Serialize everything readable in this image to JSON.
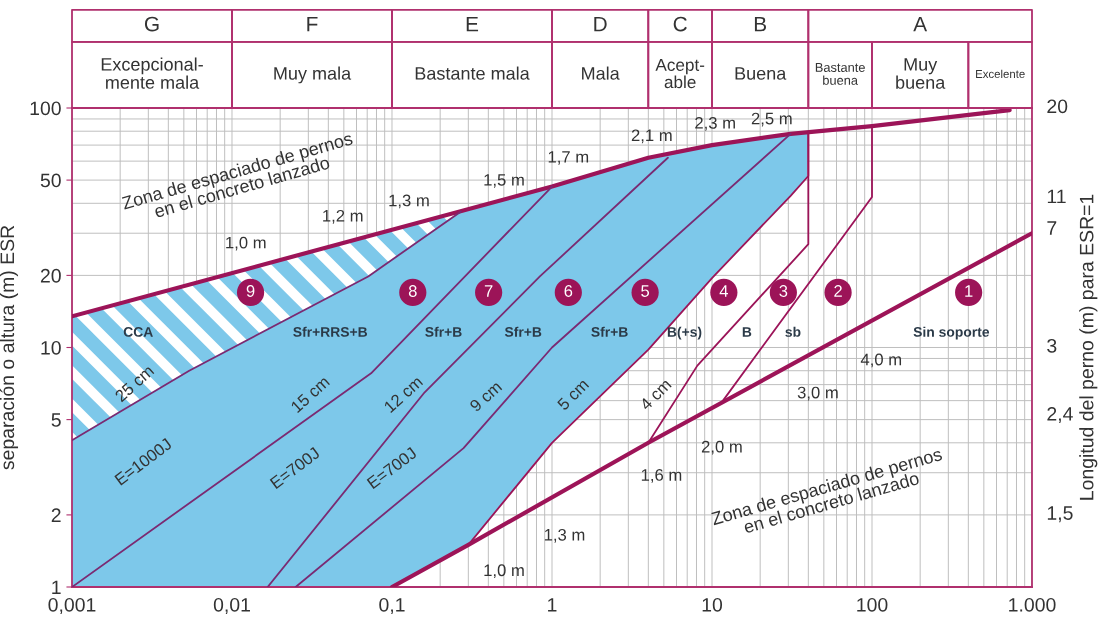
{
  "chart_data": {
    "type": "line",
    "ylabel": "separación o altura (m) ESR",
    "y2label": "Longitud del perno (m) para ESR=1",
    "log": "xy",
    "grid": true,
    "xlim": [
      0.001,
      1000
    ],
    "ylim": [
      1,
      100
    ],
    "xticks": [
      {
        "value": 0.001,
        "label": "0,001"
      },
      {
        "value": 0.01,
        "label": "0,01"
      },
      {
        "value": 0.1,
        "label": "0,1"
      },
      1,
      10,
      100,
      {
        "value": 1000,
        "label": "1.000"
      }
    ],
    "yticks": [
      1,
      2,
      5,
      10,
      20,
      50,
      100
    ],
    "series": [
      {
        "color": "#9c1458",
        "x": [
          0.001,
          1,
          4,
          10,
          31,
          100,
          725
        ],
        "values": [
          13.5,
          47,
          62,
          70,
          78,
          84,
          98
        ]
      },
      {
        "color": "#9d1458",
        "x": [
          0.1,
          0.3,
          4,
          1000
        ],
        "values": [
          1,
          1.5,
          4,
          30
        ]
      },
      {
        "color": "#7a2a72",
        "x": [
          0.001,
          0.0054,
          0.071,
          0.27
        ],
        "values": [
          4.1,
          8,
          19.8,
          37
        ]
      },
      {
        "color": "#7b2a72",
        "x": [
          0.001,
          0.074,
          1
        ],
        "values": [
          1,
          7.8,
          47
        ]
      },
      {
        "color": "#7a2b72",
        "x": [
          0.0167,
          0.16,
          0.84,
          5.3
        ],
        "values": [
          1,
          6.5,
          19.8,
          62
        ]
      },
      {
        "color": "#7a2a73",
        "x": [
          0.025,
          0.28,
          1,
          31
        ],
        "values": [
          1,
          3.8,
          10,
          78
        ]
      },
      {
        "color": "#9c1558",
        "x": [
          0.3,
          1,
          4,
          10,
          31,
          40,
          40
        ],
        "values": [
          1.5,
          4,
          9.8,
          19.5,
          43,
          52,
          79
        ]
      },
      {
        "color": "#9b1458",
        "x": [
          4,
          8.1,
          40,
          40
        ],
        "values": [
          4,
          8.4,
          27,
          79
        ]
      },
      {
        "color": "#9c1459",
        "x": [
          11.5,
          100,
          100
        ],
        "values": [
          5.9,
          42.5,
          84
        ]
      }
    ],
    "annotations": [
      "Zona de espaciado de pernos\nen el concreto lanzado",
      "Zona de espaciado de pernos\nen el concreto lanzado",
      "1,0 m",
      "1,2 m",
      "1,3 m",
      "1,5 m",
      "1,7 m",
      "2,1 m",
      "2,3 m",
      "2,5 m",
      "1,0 m",
      "1,3 m",
      "1,6 m",
      "2,0 m",
      "3,0 m",
      "4,0 m",
      "25 cm",
      "15 cm",
      "12 cm",
      "9 cm",
      "5 cm",
      "4 cm",
      "E=1000J",
      "E=700J",
      "E=700J",
      "CCA",
      "Sfr+RRS+B",
      "Sfr+B",
      "Sfr+B",
      "Sfr+B",
      "B(+s)",
      "B",
      "sb",
      "Sin soporte",
      "9",
      "8",
      "7",
      "6",
      "5",
      "4",
      "3",
      "2",
      "1",
      "20",
      "11",
      "7",
      "3",
      "2,4",
      "1,5",
      "G",
      "F",
      "E",
      "D",
      "C",
      "B",
      "A",
      "Excepcional-\nmente mala",
      "Muy mala",
      "Bastante mala",
      "Mala",
      "Acept-\nable",
      "Buena",
      "Bastante\nbuena",
      "Muy\nbuena",
      "Excelente"
    ]
  }
}
